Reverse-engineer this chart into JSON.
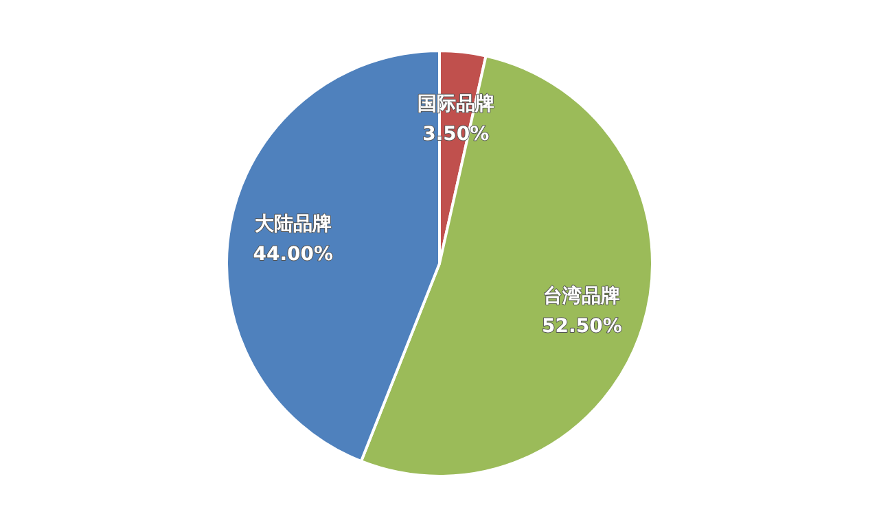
{
  "chart_data": {
    "type": "pie",
    "categories": [
      "国际品牌",
      "台湾品牌",
      "大陆品牌"
    ],
    "values": [
      3.5,
      52.5,
      44.0
    ],
    "colors": [
      "#c0504d",
      "#9bbb59",
      "#4f81bd"
    ],
    "value_labels": [
      "3.50%",
      "52.50%",
      "44.00%"
    ]
  }
}
